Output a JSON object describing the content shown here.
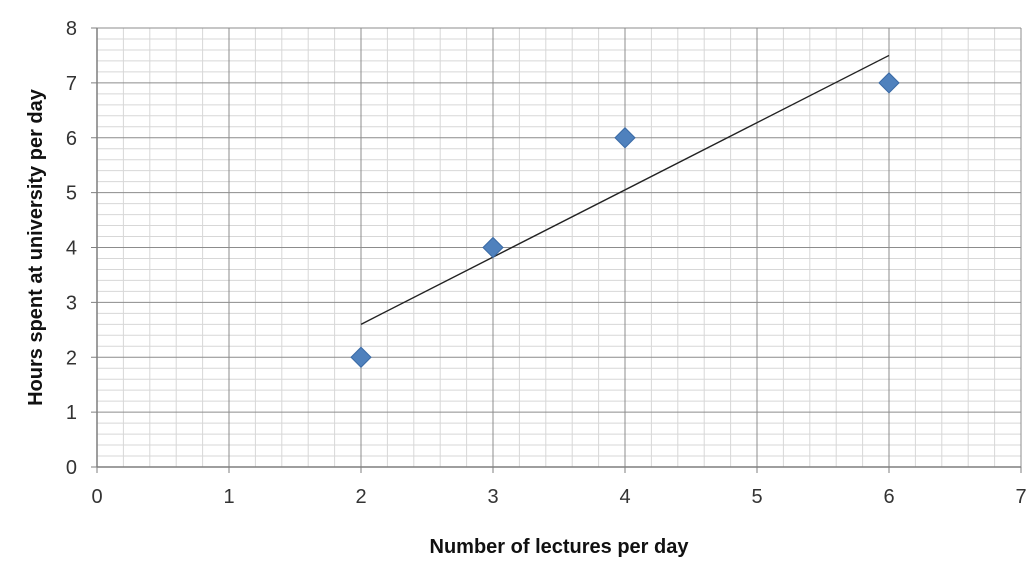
{
  "chart_data": {
    "type": "scatter",
    "title": "",
    "xlabel": "Number of lectures per day",
    "ylabel": "Hours spent at university per day",
    "xlim": [
      0,
      7
    ],
    "ylim": [
      0,
      8
    ],
    "x_ticks": [
      0,
      1,
      2,
      3,
      4,
      5,
      6,
      7
    ],
    "y_ticks": [
      0,
      1,
      2,
      3,
      4,
      5,
      6,
      7,
      8
    ],
    "grid": true,
    "legend": "none",
    "series": [
      {
        "marker": "diamond",
        "color": "#4f81bd",
        "points": [
          {
            "x": 2,
            "y": 2
          },
          {
            "x": 3,
            "y": 4
          },
          {
            "x": 4,
            "y": 6
          },
          {
            "x": 6,
            "y": 7
          }
        ]
      }
    ],
    "trendline": {
      "type": "linear",
      "color": "#222222",
      "from": {
        "x": 2,
        "y": 2.6
      },
      "to": {
        "x": 6,
        "y": 7.5
      }
    }
  }
}
